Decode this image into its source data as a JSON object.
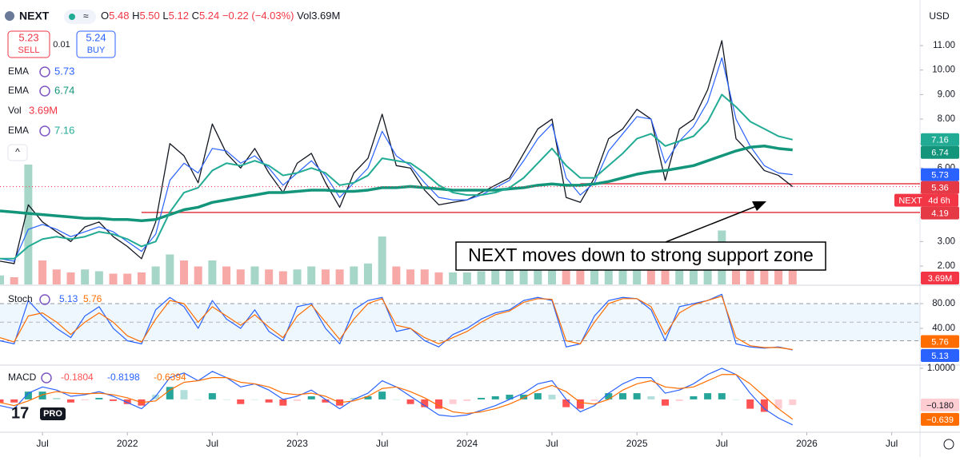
{
  "header": {
    "symbol": "NEXT",
    "quote": [
      {
        "k": "O",
        "v": "5.48"
      },
      {
        "k": "H",
        "v": "5.50"
      },
      {
        "k": "L",
        "v": "5.12"
      },
      {
        "k": "C",
        "v": "5.24"
      }
    ],
    "change": "−0.22 (−4.03%)",
    "volume": "Vol3.69M",
    "currency": "USD",
    "countdown": "4d 6h",
    "logo_text": "PRO",
    "trade": {
      "sell_price": "5.23",
      "sell": "SELL",
      "spread": "0.01",
      "buy_price": "5.24",
      "buy": "BUY"
    },
    "annotation": "NEXT moves down to strong support zone"
  },
  "chart_data": [
    {
      "type": "line",
      "x": [
        "2021-04",
        "2021-05",
        "2021-06",
        "2021-07",
        "2021-08",
        "2021-09",
        "2021-10",
        "2021-11",
        "2021-12",
        "2022-01",
        "2022-02",
        "2022-03",
        "2022-04",
        "2022-05",
        "2022-06",
        "2022-07",
        "2022-08",
        "2022-09",
        "2022-10",
        "2022-11",
        "2022-12",
        "2023-01",
        "2023-02",
        "2023-03",
        "2023-04",
        "2023-05",
        "2023-06",
        "2023-07",
        "2023-08",
        "2023-09",
        "2023-10",
        "2023-11",
        "2023-12",
        "2024-01",
        "2024-02",
        "2024-03",
        "2024-04",
        "2024-05",
        "2024-06",
        "2024-07",
        "2024-08",
        "2024-09",
        "2024-10",
        "2024-11",
        "2024-12",
        "2025-01",
        "2025-02",
        "2025-03",
        "2025-04",
        "2025-05",
        "2025-06",
        "2025-07",
        "2025-08",
        "2025-09",
        "2025-10",
        "2025-11",
        "2025-12"
      ],
      "xlim": [
        "2021-04",
        "2026-09"
      ],
      "xticks": [
        {
          "value": "2021-07",
          "label": "Jul"
        },
        {
          "value": "2022-01",
          "label": "2022"
        },
        {
          "value": "2022-07",
          "label": "Jul"
        },
        {
          "value": "2023-01",
          "label": "2023"
        },
        {
          "value": "2023-07",
          "label": "Jul"
        },
        {
          "value": "2024-01",
          "label": "2024"
        },
        {
          "value": "2024-07",
          "label": "Jul"
        },
        {
          "value": "2025-01",
          "label": "2025"
        },
        {
          "value": "2025-07",
          "label": "Jul"
        },
        {
          "value": "2026-01",
          "label": "2026"
        },
        {
          "value": "2026-07",
          "label": "Jul"
        }
      ],
      "ylim": [
        1.25,
        12.6
      ],
      "yticks": [
        {
          "value": 2,
          "label": "2.00"
        },
        {
          "value": 3,
          "label": "3.00"
        },
        {
          "value": 4,
          "label": "4.00"
        },
        {
          "value": 5,
          "label": "5.00"
        },
        {
          "value": 6,
          "label": "6.00"
        },
        {
          "value": 7,
          "label": "7.00"
        },
        {
          "value": 8,
          "label": "8.00"
        },
        {
          "value": 9,
          "label": "9.00"
        },
        {
          "value": 10,
          "label": "10.00"
        },
        {
          "value": 11,
          "label": "11.00"
        }
      ],
      "series": [
        {
          "name": "NEXT",
          "color": "#131722",
          "width": 1.3,
          "values": [
            2.2,
            2.1,
            4.5,
            3.8,
            3.4,
            3.0,
            3.6,
            3.8,
            3.2,
            2.8,
            2.3,
            3.8,
            7.0,
            6.5,
            5.4,
            7.8,
            6.6,
            6.0,
            6.8,
            5.8,
            5.0,
            6.2,
            6.6,
            5.4,
            4.4,
            5.8,
            6.4,
            8.2,
            6.1,
            6.0,
            5.1,
            4.5,
            4.6,
            4.7,
            5.0,
            5.3,
            5.6,
            6.6,
            7.6,
            8.0,
            4.8,
            4.6,
            5.6,
            7.2,
            7.6,
            8.4,
            8.0,
            5.5,
            7.6,
            8.0,
            9.2,
            11.2,
            7.2,
            6.6,
            5.9,
            5.7,
            5.24
          ]
        },
        {
          "name": "EMA",
          "color": "#2962ff",
          "width": 1.2,
          "values": [
            2.3,
            2.2,
            3.5,
            3.7,
            3.5,
            3.2,
            3.4,
            3.6,
            3.4,
            3.0,
            2.6,
            3.3,
            5.5,
            6.2,
            5.8,
            6.8,
            6.7,
            6.2,
            6.5,
            6.0,
            5.3,
            5.8,
            6.3,
            5.7,
            4.8,
            5.4,
            6.0,
            7.5,
            6.5,
            6.1,
            5.4,
            4.8,
            4.7,
            4.7,
            4.9,
            5.2,
            5.5,
            6.3,
            7.2,
            7.8,
            5.6,
            4.9,
            5.4,
            6.7,
            7.4,
            8.1,
            8.0,
            6.2,
            7.1,
            7.7,
            8.7,
            10.5,
            8.0,
            6.9,
            6.1,
            5.8,
            5.73
          ]
        },
        {
          "name": "EMA",
          "color": "#12957a",
          "width": 3.5,
          "values": [
            4.25,
            4.2,
            4.15,
            4.1,
            4.05,
            4.0,
            3.95,
            3.95,
            3.9,
            3.9,
            3.85,
            3.9,
            4.1,
            4.3,
            4.4,
            4.6,
            4.7,
            4.8,
            4.9,
            5.0,
            5.0,
            5.05,
            5.1,
            5.1,
            5.05,
            5.05,
            5.1,
            5.2,
            5.2,
            5.25,
            5.2,
            5.15,
            5.1,
            5.1,
            5.1,
            5.1,
            5.15,
            5.2,
            5.3,
            5.35,
            5.3,
            5.3,
            5.35,
            5.45,
            5.6,
            5.75,
            5.85,
            5.9,
            6.0,
            6.1,
            6.3,
            6.5,
            6.7,
            6.85,
            6.9,
            6.8,
            6.74
          ]
        },
        {
          "name": "EMA",
          "color": "#22ab94",
          "width": 2,
          "values": [
            2.3,
            2.3,
            2.8,
            3.1,
            3.2,
            3.1,
            3.2,
            3.4,
            3.3,
            3.1,
            2.8,
            3.0,
            4.2,
            5.0,
            5.2,
            5.9,
            6.2,
            6.1,
            6.3,
            6.1,
            5.7,
            5.8,
            6.0,
            5.8,
            5.3,
            5.4,
            5.7,
            6.4,
            6.3,
            6.2,
            5.8,
            5.3,
            5.0,
            4.9,
            4.9,
            5.0,
            5.2,
            5.6,
            6.2,
            6.8,
            6.1,
            5.6,
            5.6,
            6.1,
            6.6,
            7.2,
            7.4,
            6.9,
            7.1,
            7.3,
            7.9,
            9.0,
            8.5,
            7.9,
            7.6,
            7.3,
            7.16
          ]
        }
      ],
      "volume": {
        "name": "Vol",
        "color": "#f7a9a7",
        "value_label": "3.69M",
        "values": [
          1.5,
          1.2,
          20,
          4,
          2.5,
          2,
          2.5,
          2.2,
          1.8,
          1.8,
          2,
          3,
          5,
          4,
          3,
          4,
          3,
          2.5,
          3,
          2.5,
          2.2,
          2.5,
          3,
          2.5,
          2.5,
          3,
          3.5,
          8,
          3,
          2.5,
          2.5,
          2,
          2,
          2,
          2.2,
          2.5,
          2.5,
          3,
          4,
          4.5,
          5,
          3,
          3,
          4,
          4.5,
          5,
          4,
          5,
          4.5,
          4,
          5,
          9,
          7,
          5,
          4.5,
          4,
          3.69
        ]
      },
      "hlines": [
        {
          "value": 5.36,
          "from": "2024-09",
          "color": "#e53945"
        },
        {
          "value": 4.19,
          "from": "2022-02",
          "color": "#e53945"
        }
      ]
    },
    {
      "type": "line",
      "title": "Stoch",
      "ylim": [
        -16.8,
        104.5
      ],
      "yticks": [
        {
          "value": 80,
          "label": "80.00"
        },
        {
          "value": 40,
          "label": "40.00"
        }
      ],
      "band": [
        20,
        80
      ],
      "midline": 50,
      "series": [
        {
          "name": "%K",
          "color": "#2962ff",
          "width": 1.2,
          "values": [
            20,
            15,
            85,
            60,
            40,
            25,
            60,
            75,
            40,
            20,
            15,
            70,
            90,
            75,
            40,
            85,
            55,
            40,
            70,
            35,
            20,
            75,
            80,
            40,
            15,
            70,
            85,
            90,
            35,
            40,
            20,
            10,
            30,
            40,
            55,
            65,
            70,
            85,
            90,
            85,
            10,
            15,
            60,
            85,
            90,
            88,
            70,
            20,
            75,
            80,
            85,
            95,
            15,
            10,
            8,
            10,
            5.13
          ]
        },
        {
          "name": "%D",
          "color": "#ff6d00",
          "width": 1.2,
          "values": [
            25,
            18,
            60,
            65,
            50,
            30,
            50,
            65,
            50,
            28,
            18,
            55,
            85,
            80,
            50,
            75,
            60,
            45,
            62,
            42,
            25,
            60,
            78,
            50,
            22,
            55,
            80,
            88,
            45,
            40,
            25,
            15,
            25,
            35,
            50,
            62,
            68,
            82,
            88,
            87,
            20,
            15,
            50,
            80,
            88,
            88,
            75,
            30,
            65,
            78,
            85,
            92,
            25,
            12,
            9,
            9,
            5.76
          ]
        }
      ]
    },
    {
      "type": "line",
      "title": "MACD",
      "ylim": [
        -1.03,
        1.05
      ],
      "yticks": [
        {
          "value": 1,
          "label": "1.0000"
        }
      ],
      "histogram": {
        "name": "Histogram",
        "value_label": "−0.180",
        "values": [
          -0.1,
          -0.1,
          0.25,
          0.25,
          0.05,
          -0.1,
          -0.03,
          0.05,
          -0.05,
          -0.15,
          -0.2,
          0.15,
          0.4,
          0.3,
          0,
          0.2,
          0,
          -0.15,
          0,
          -0.1,
          -0.2,
          -0.05,
          0.1,
          -0.1,
          -0.2,
          0.05,
          0.1,
          0.25,
          0,
          -0.15,
          -0.25,
          -0.3,
          -0.15,
          -0.05,
          0.05,
          0.1,
          0.15,
          0.15,
          0.2,
          0.15,
          -0.25,
          -0.3,
          -0.05,
          0.2,
          0.2,
          0.2,
          0.1,
          -0.2,
          -0.05,
          0.1,
          0.2,
          0.2,
          0,
          -0.3,
          -0.4,
          -0.3,
          -0.1804
        ]
      },
      "series": [
        {
          "name": "MACD",
          "color": "#2962ff",
          "width": 1.2,
          "values": [
            -0.2,
            -0.3,
            0.2,
            0.4,
            0.3,
            0.1,
            0.15,
            0.25,
            0.1,
            -0.1,
            -0.3,
            0.1,
            0.7,
            0.85,
            0.6,
            0.9,
            0.7,
            0.4,
            0.5,
            0.3,
            0.0,
            0.1,
            0.3,
            0.0,
            -0.3,
            0.0,
            0.2,
            0.6,
            0.4,
            0.1,
            -0.2,
            -0.5,
            -0.55,
            -0.5,
            -0.35,
            -0.2,
            0.0,
            0.2,
            0.5,
            0.6,
            0.0,
            -0.4,
            -0.2,
            0.2,
            0.5,
            0.7,
            0.7,
            0.2,
            0.3,
            0.5,
            0.8,
            1.0,
            0.8,
            0.2,
            -0.3,
            -0.6,
            -0.8198
          ]
        },
        {
          "name": "Signal",
          "color": "#ff6d00",
          "width": 1.2,
          "value_label": "−0.639",
          "values": [
            -0.1,
            -0.2,
            -0.05,
            0.15,
            0.25,
            0.2,
            0.18,
            0.2,
            0.15,
            0.05,
            -0.1,
            -0.05,
            0.3,
            0.55,
            0.6,
            0.7,
            0.7,
            0.55,
            0.5,
            0.4,
            0.2,
            0.15,
            0.2,
            0.1,
            -0.1,
            -0.05,
            0.1,
            0.35,
            0.4,
            0.25,
            0.05,
            -0.2,
            -0.4,
            -0.45,
            -0.4,
            -0.3,
            -0.15,
            0.05,
            0.3,
            0.45,
            0.25,
            -0.1,
            -0.15,
            0.0,
            0.3,
            0.5,
            0.6,
            0.4,
            0.35,
            0.4,
            0.6,
            0.8,
            0.8,
            0.5,
            0.1,
            -0.3,
            -0.6394
          ]
        }
      ]
    }
  ]
}
